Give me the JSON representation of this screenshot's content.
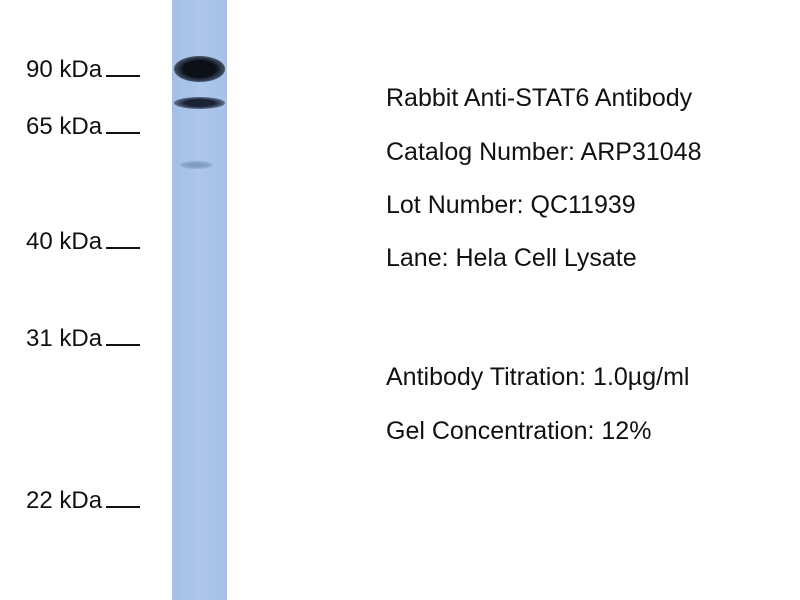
{
  "markers": [
    "90 kDa",
    "65 kDa",
    "40 kDa",
    "31 kDa",
    "22 kDa"
  ],
  "lane_color": "#a9c3e8",
  "band_color": "#0f1420",
  "info": {
    "antibody": "Rabbit Anti-STAT6 Antibody",
    "catalog": "Catalog Number: ARP31048",
    "lot": "Lot Number: QC11939",
    "lane": "Lane: Hela Cell Lysate",
    "titration": "Antibody Titration: 1.0µg/ml",
    "gel": "Gel Concentration: 12%"
  }
}
